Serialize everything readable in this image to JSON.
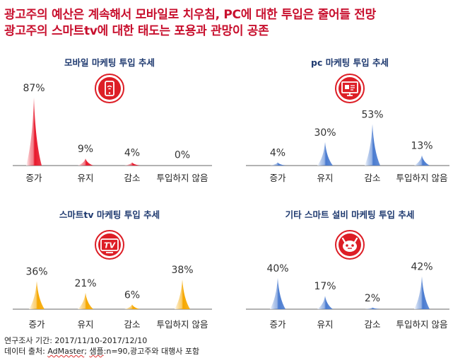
{
  "headline": {
    "line1": "광고주의 예산은 계속해서 모바일로 치우침, PC에 대한 투입은 줄어들 전망",
    "line2": "광고주의 스마트tv에 대한 태도는 포용과 관망이 공존"
  },
  "colors": {
    "title_red": "#c8102e",
    "mobile": "#e8192c",
    "pc": "#4a7bd0",
    "smarttv": "#f6a800",
    "other": "#4a7bd0",
    "icon_bg": "#dd1e26",
    "axis": "#9a9a9a"
  },
  "chart_data": [
    {
      "type": "bar",
      "title": "모바일 마케팅 투입 추세",
      "icon": "mobile-phone-icon",
      "categories": [
        "증가",
        "유지",
        "감소",
        "투입하지 않음"
      ],
      "values": [
        87,
        9,
        4,
        0
      ],
      "value_labels": [
        "87%",
        "9%",
        "4%",
        "0%"
      ],
      "ylim": [
        0,
        100
      ],
      "bar_shape": "spike",
      "color": "#e8192c"
    },
    {
      "type": "bar",
      "title": "pc 마케팅 투입 추세",
      "icon": "desktop-monitor-icon",
      "categories": [
        "증가",
        "유지",
        "감소",
        "투입하지 않음"
      ],
      "values": [
        4,
        30,
        53,
        13
      ],
      "value_labels": [
        "4%",
        "30%",
        "53%",
        "13%"
      ],
      "ylim": [
        0,
        100
      ],
      "bar_shape": "spike",
      "color": "#4a7bd0"
    },
    {
      "type": "bar",
      "title": "스마트tv 마케팅 투입 추세",
      "icon": "tv-icon",
      "icon_text": "TV",
      "categories": [
        "증가",
        "유지",
        "감소",
        "투입하지 않음"
      ],
      "values": [
        36,
        21,
        6,
        38
      ],
      "value_labels": [
        "36%",
        "21%",
        "6%",
        "38%"
      ],
      "ylim": [
        0,
        100
      ],
      "bar_shape": "spike",
      "color": "#f6a800"
    },
    {
      "type": "bar",
      "title": "기타 스마트 설비 마케팅 투입 추세",
      "icon": "robot-device-icon",
      "categories": [
        "증가",
        "유지",
        "감소",
        "투입하지 않음"
      ],
      "values": [
        40,
        17,
        2,
        42
      ],
      "value_labels": [
        "40%",
        "17%",
        "2%",
        "42%"
      ],
      "ylim": [
        0,
        100
      ],
      "bar_shape": "spike",
      "color": "#4a7bd0"
    }
  ],
  "footer": {
    "period": "연구조사 기간: 2017/11/10-2017/12/10",
    "source_prefix": "데이터 출처: ",
    "source_name": "AdMaster",
    "source_sep": "; ",
    "sample_word": "샘플",
    "sample_rest": ":n=90,광고주와 대행사 포함"
  }
}
